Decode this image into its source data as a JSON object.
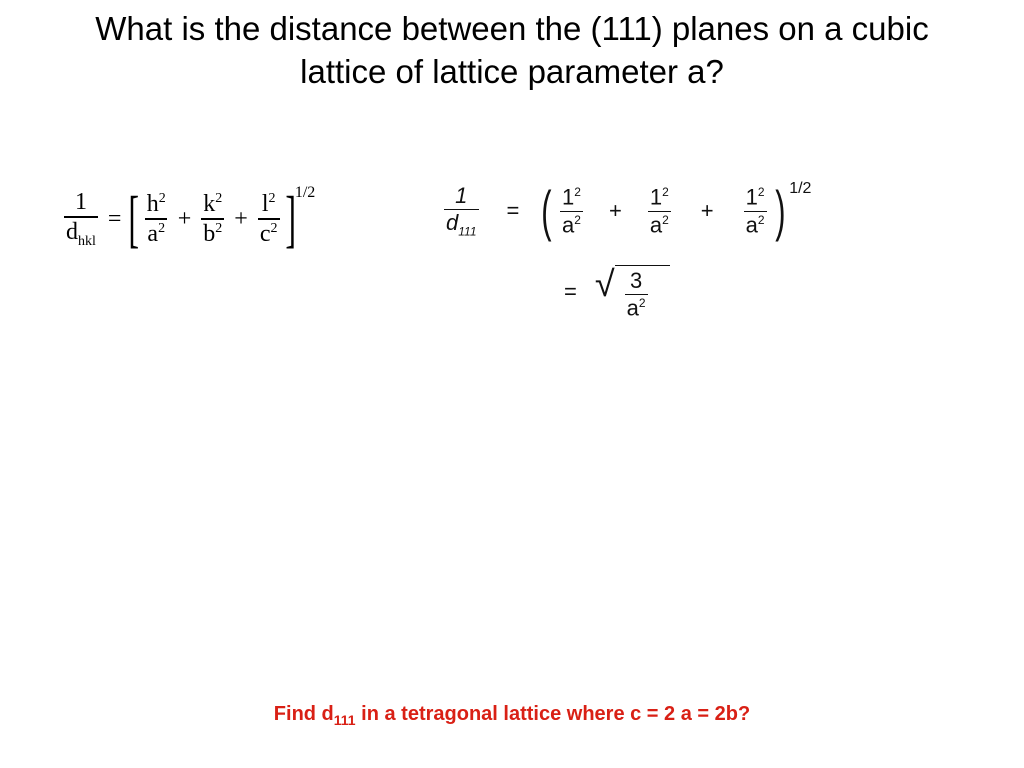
{
  "title": "What is the distance between the (111) planes on a cubic lattice of lattice parameter a?",
  "printed_formula": {
    "lhs_num": "1",
    "lhs_den_d": "d",
    "lhs_den_sub": "hkl",
    "eq": "=",
    "t1_num_base": "h",
    "t1_num_exp": "2",
    "t1_den_base": "a",
    "t1_den_exp": "2",
    "plus1": "+",
    "t2_num_base": "k",
    "t2_num_exp": "2",
    "t2_den_base": "b",
    "t2_den_exp": "2",
    "plus2": "+",
    "t3_num_base": "l",
    "t3_num_exp": "2",
    "t3_den_base": "c",
    "t3_den_exp": "2",
    "outer_exp": "1/2"
  },
  "handwritten": {
    "lhs_num": "1",
    "lhs_den_d": "d",
    "lhs_den_sub": "111",
    "eq": "=",
    "term_num_base": "1",
    "term_num_exp": "2",
    "term_den_base": "a",
    "term_den_exp": "2",
    "plus": "+",
    "outer_exp": "1/2",
    "eq2": "=",
    "sqrt_num": "3",
    "sqrt_den_base": "a",
    "sqrt_den_exp": "2"
  },
  "footer": {
    "pre": "Find  d",
    "sub": "111",
    "post": " in a tetragonal lattice where c = 2 a = 2b?"
  },
  "colors": {
    "title": "#000000",
    "footer": "#d92015",
    "background": "#ffffff",
    "ink": "#111111"
  }
}
